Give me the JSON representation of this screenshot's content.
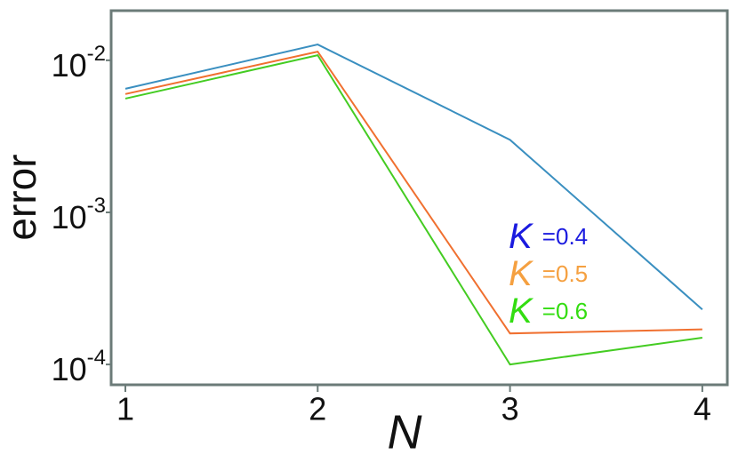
{
  "chart_data": {
    "type": "line",
    "xlabel": "N",
    "ylabel": "error",
    "x": [
      1,
      2,
      3,
      4
    ],
    "xlim": [
      0.926,
      4.13
    ],
    "xticks": [
      1,
      2,
      3,
      4
    ],
    "ylim": [
      7.35e-05,
      0.0212
    ],
    "log_y": true,
    "yticks": [
      {
        "value": 0.01,
        "label": "10",
        "exponent": "-2"
      },
      {
        "value": 0.001,
        "label": "10",
        "exponent": "-3"
      },
      {
        "value": 0.0001,
        "label": "10",
        "exponent": "-4"
      }
    ],
    "series": [
      {
        "name": "K =0.4",
        "color": "#3a8fc0",
        "legend_color": "#1a1adf",
        "values": [
          0.0065,
          0.0127,
          0.003,
          0.00023
        ]
      },
      {
        "name": "K =0.5",
        "color": "#f07030",
        "legend_color": "#f5a040",
        "values": [
          0.006,
          0.0114,
          0.00016,
          0.00017
        ]
      },
      {
        "name": "K =0.6",
        "color": "#44cc22",
        "legend_color": "#33dd11",
        "values": [
          0.0056,
          0.0108,
          0.0001,
          0.00015
        ]
      }
    ]
  }
}
